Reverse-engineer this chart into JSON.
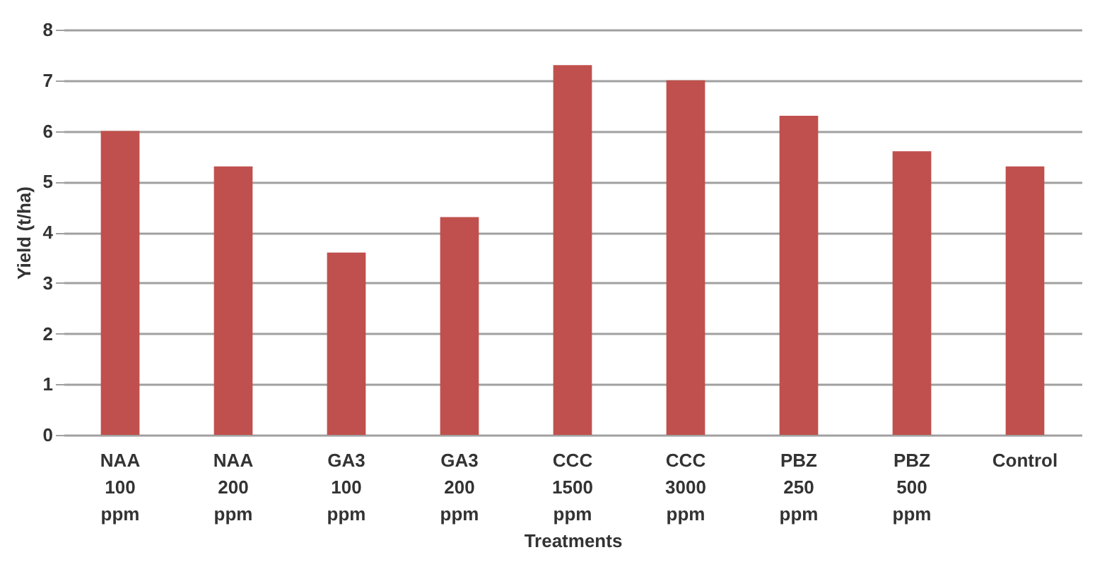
{
  "chart_data": {
    "type": "bar",
    "xlabel": "Treatments",
    "ylabel": "Yield (t/ha)",
    "categories": [
      "NAA 100 ppm",
      "NAA 200 ppm",
      "GA3 100 ppm",
      "GA3 200 ppm",
      "CCC 1500 ppm",
      "CCC 3000 ppm",
      "PBZ 250 ppm",
      "PBZ 500 ppm",
      "Control"
    ],
    "values": [
      6.0,
      5.3,
      3.6,
      4.3,
      7.3,
      7.0,
      6.3,
      5.6,
      5.3
    ],
    "color": "#c0504d",
    "ylim": [
      0,
      8
    ],
    "yticks": [
      0,
      1,
      2,
      3,
      4,
      5,
      6,
      7,
      8
    ],
    "grid": "y"
  }
}
